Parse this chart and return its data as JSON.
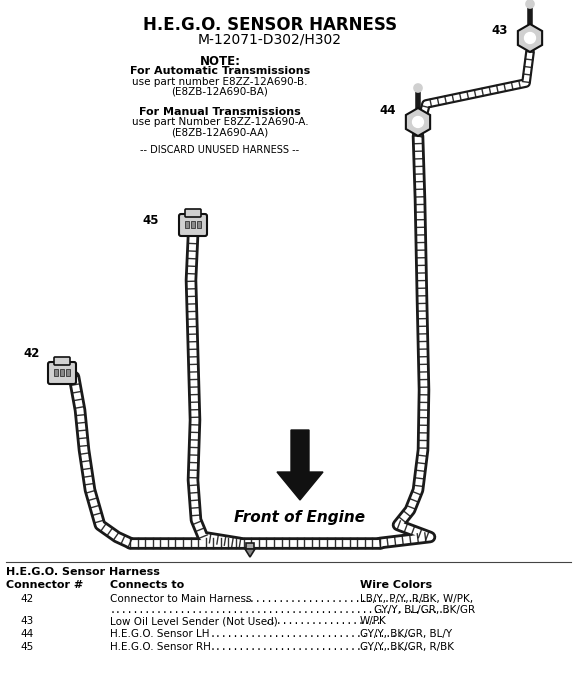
{
  "title_line1": "H.E.G.O. SENSOR HARNESS",
  "title_line2": "M-12071-D302/H302",
  "note_line1": "NOTE:",
  "note_line2": "For Automatic Transmissions",
  "note_line3": "use part number E8ZZ-12A690-B.",
  "note_line4": "(E8ZB-12A690-BA)",
  "note_line5": "For Manual Transmissions",
  "note_line6": "use part Number E8ZZ-12A690-A.",
  "note_line7": "(E8ZB-12A690-AA)",
  "note_line8": "-- DISCARD UNUSED HARNESS --",
  "front_of_engine": "Front of Engine",
  "table_title": "H.E.G.O. Sensor Harness",
  "col_header_1": "Connector #",
  "col_header_2": "Connects to",
  "col_header_3": "Wire Colors",
  "row1_num": "42",
  "row1_conn": "Connector to Main Harness",
  "row1_color1": "LB/Y, P/Y, R/BK, W/PK,",
  "row1_color2": "GY/Y, BL/GR, BK/GR",
  "row2_num": "43",
  "row2_conn": "Low Oil Level Sender (Not Used)",
  "row2_color": "W/PK",
  "row3_num": "44",
  "row3_conn": "H.E.G.O. Sensor LH",
  "row3_color": "GY/Y, BK/GR, BL/Y",
  "row4_num": "45",
  "row4_conn": "H.E.G.O. Sensor RH",
  "row4_color": "GY/Y, BK/GR, R/BK",
  "bg_color": "#ffffff",
  "text_color": "#000000",
  "harness_outer": "#1a1a1a",
  "harness_inner": "#f0f0f0",
  "connector_face": "#d0d0d0",
  "connector_edge": "#111111"
}
